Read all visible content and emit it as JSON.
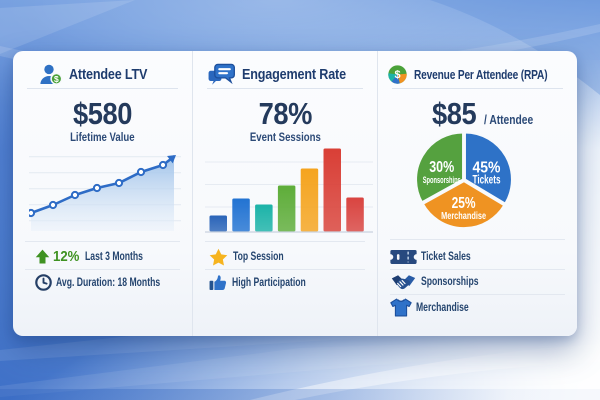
{
  "panels": [
    {
      "id": "attendee-ltv",
      "icon": "person-dollar-icon",
      "title": "Attendee LTV",
      "metric_value": "$580",
      "metric_label": "Lifetime Value",
      "stats": [
        {
          "icon": "up-arrow-icon",
          "highlight": "12%",
          "label": "Last 3 Months"
        },
        {
          "icon": "clock-icon",
          "label": "Avg. Duration: 18 Months"
        }
      ]
    },
    {
      "id": "engagement-rate",
      "icon": "chat-icon",
      "title": "Engagement Rate",
      "metric_value": "78%",
      "metric_label": "Event Sessions",
      "stats": [
        {
          "icon": "star-icon",
          "label": "Top Session"
        },
        {
          "icon": "thumbs-up-icon",
          "label": "High Participation"
        }
      ]
    },
    {
      "id": "revenue-per-attendee",
      "icon": "coin-icon",
      "title": "Revenue Per Attendee (RPA)",
      "metric_value": "$85",
      "metric_suffix": "/ Attendee",
      "legend": [
        {
          "icon": "ticket-icon",
          "label": "Ticket Sales"
        },
        {
          "icon": "handshake-icon",
          "label": "Sponsorships"
        },
        {
          "icon": "tshirt-icon",
          "label": "Merchandise"
        }
      ]
    }
  ],
  "chart_data": [
    {
      "type": "line",
      "panel": "attendee-ltv",
      "title": "Lifetime Value trend",
      "x": [
        1,
        2,
        3,
        4,
        5,
        6,
        7
      ],
      "series": [
        {
          "name": "Lifetime Value",
          "values": [
            18,
            26,
            36,
            43,
            48,
            59,
            66
          ]
        }
      ],
      "ylim": [
        0,
        80
      ],
      "grid": true,
      "trend": "up-arrow",
      "line_color": "#2e6cc6",
      "marker": "circle-open",
      "area_fill": true
    },
    {
      "type": "bar",
      "panel": "engagement-rate",
      "title": "Event Sessions",
      "categories": [
        "1",
        "2",
        "3",
        "4",
        "5",
        "6",
        "7"
      ],
      "values": [
        16,
        33,
        27,
        46,
        63,
        83,
        34
      ],
      "ylim": [
        0,
        90
      ],
      "grid": true,
      "bar_colors": [
        "#2a64b8",
        "#2273d2",
        "#1cb3a8",
        "#5ead39",
        "#f5a41e",
        "#d93f36",
        "#d94440"
      ]
    },
    {
      "type": "pie",
      "panel": "revenue-per-attendee",
      "title": "Revenue mix",
      "slices": [
        {
          "label": "Tickets",
          "value": 45,
          "pct_label": "45%",
          "color": "#2e72c7",
          "name_size": 12,
          "name_width": 28,
          "pct_width": 28,
          "display_sweep_deg": 121,
          "label_r": 0.55
        },
        {
          "label": "Merchandise",
          "value": 25,
          "pct_label": "25%",
          "color": "#ef9322",
          "name_size": 10.5,
          "name_width": 45,
          "pct_width": 24,
          "display_sweep_deg": 120,
          "label_r": 0.49
        },
        {
          "label": "Sponsorships",
          "value": 30,
          "pct_label": "30%",
          "color": "#55a13f",
          "name_size": 8.8,
          "name_width": 38,
          "pct_width": 25,
          "display_sweep_deg": 119,
          "label_r": 0.55
        }
      ],
      "start_angle_deg": 0,
      "clockwise": true,
      "label_color": "#ffffff"
    }
  ]
}
